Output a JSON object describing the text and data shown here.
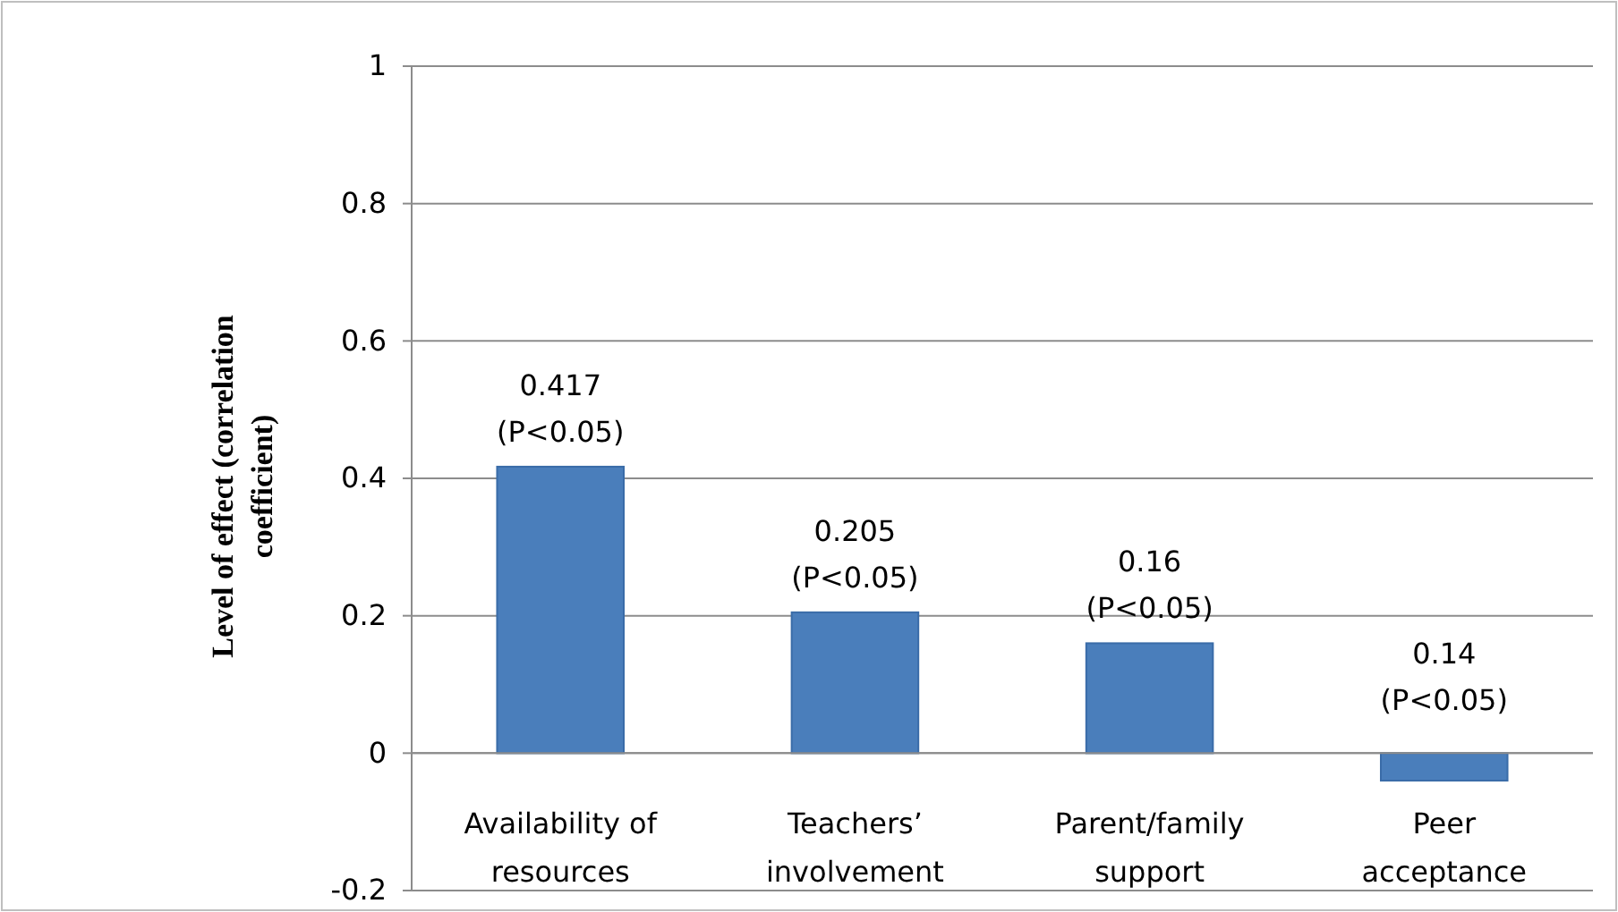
{
  "chart_data": {
    "type": "bar",
    "ylabel": "Level of effect (correlation coefficient)",
    "categories": [
      "Availability of resources",
      "Teachers’ involvement",
      "Parent/family support",
      "Peer acceptance"
    ],
    "values": [
      0.417,
      0.205,
      0.16,
      -0.04
    ],
    "value_labels": [
      "0.417 (P<0.05)",
      "0.205 (P<0.05)",
      "0.16 (P<0.05)",
      null
    ],
    "annotations": [
      "0.14 (P<0.05)"
    ],
    "color": "#4a7ebb",
    "ylim": [
      -0.2,
      1
    ],
    "yticks": [
      -0.2,
      0,
      0.2,
      0.4,
      0.6,
      0.8,
      1
    ],
    "grid": "y"
  }
}
